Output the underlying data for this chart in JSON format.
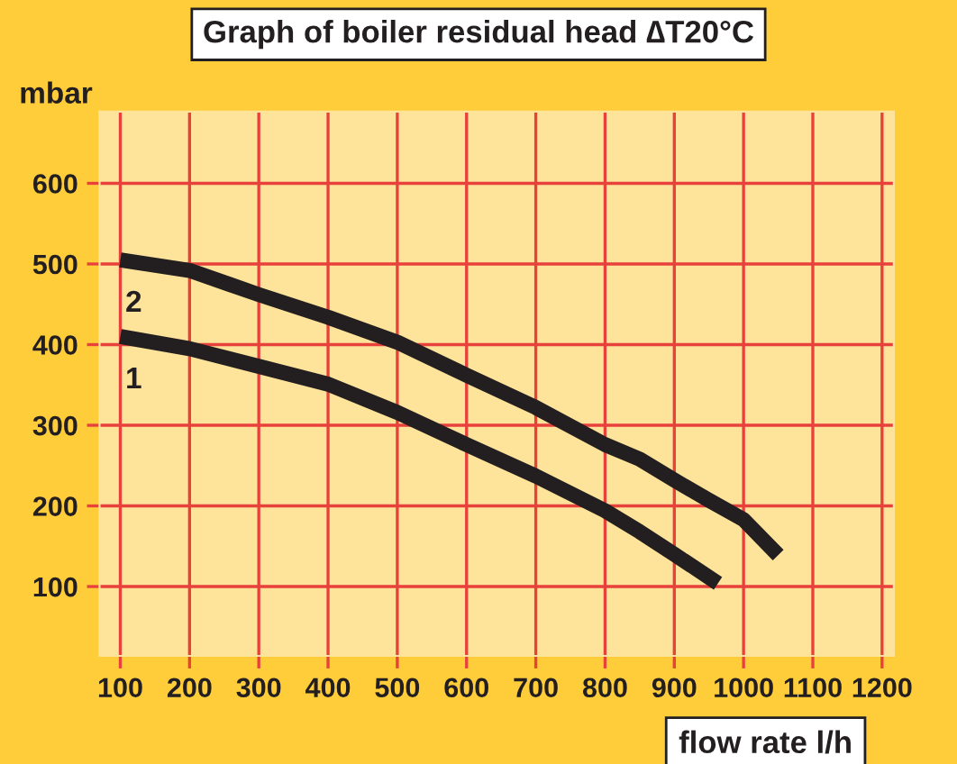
{
  "chart_data": {
    "type": "line",
    "title": "Graph of boiler residual head ∆T20°C",
    "xlabel": "flow rate l/h",
    "ylabel": "mbar",
    "series": [
      {
        "name": "2",
        "color": "#231f20",
        "x": [
          100,
          200,
          300,
          400,
          500,
          600,
          700,
          800,
          850,
          900,
          950,
          1000,
          1050
        ],
        "values": [
          505,
          492,
          462,
          434,
          403,
          362,
          322,
          276,
          258,
          232,
          207,
          183,
          139
        ]
      },
      {
        "name": "1",
        "color": "#231f20",
        "x": [
          100,
          200,
          300,
          400,
          500,
          600,
          700,
          800,
          850,
          900,
          963
        ],
        "values": [
          410,
          395,
          373,
          351,
          316,
          276,
          237,
          194,
          168,
          140,
          104
        ]
      }
    ],
    "xlim": [
      70,
      1217
    ],
    "ylim": [
      14,
      689
    ],
    "xticks": [
      100,
      200,
      300,
      400,
      500,
      600,
      700,
      800,
      900,
      1000,
      1100,
      1200
    ],
    "yticks": [
      100,
      200,
      300,
      400,
      500,
      600
    ],
    "grid": true,
    "legend": false,
    "marker": "none",
    "line_style": "solid"
  }
}
